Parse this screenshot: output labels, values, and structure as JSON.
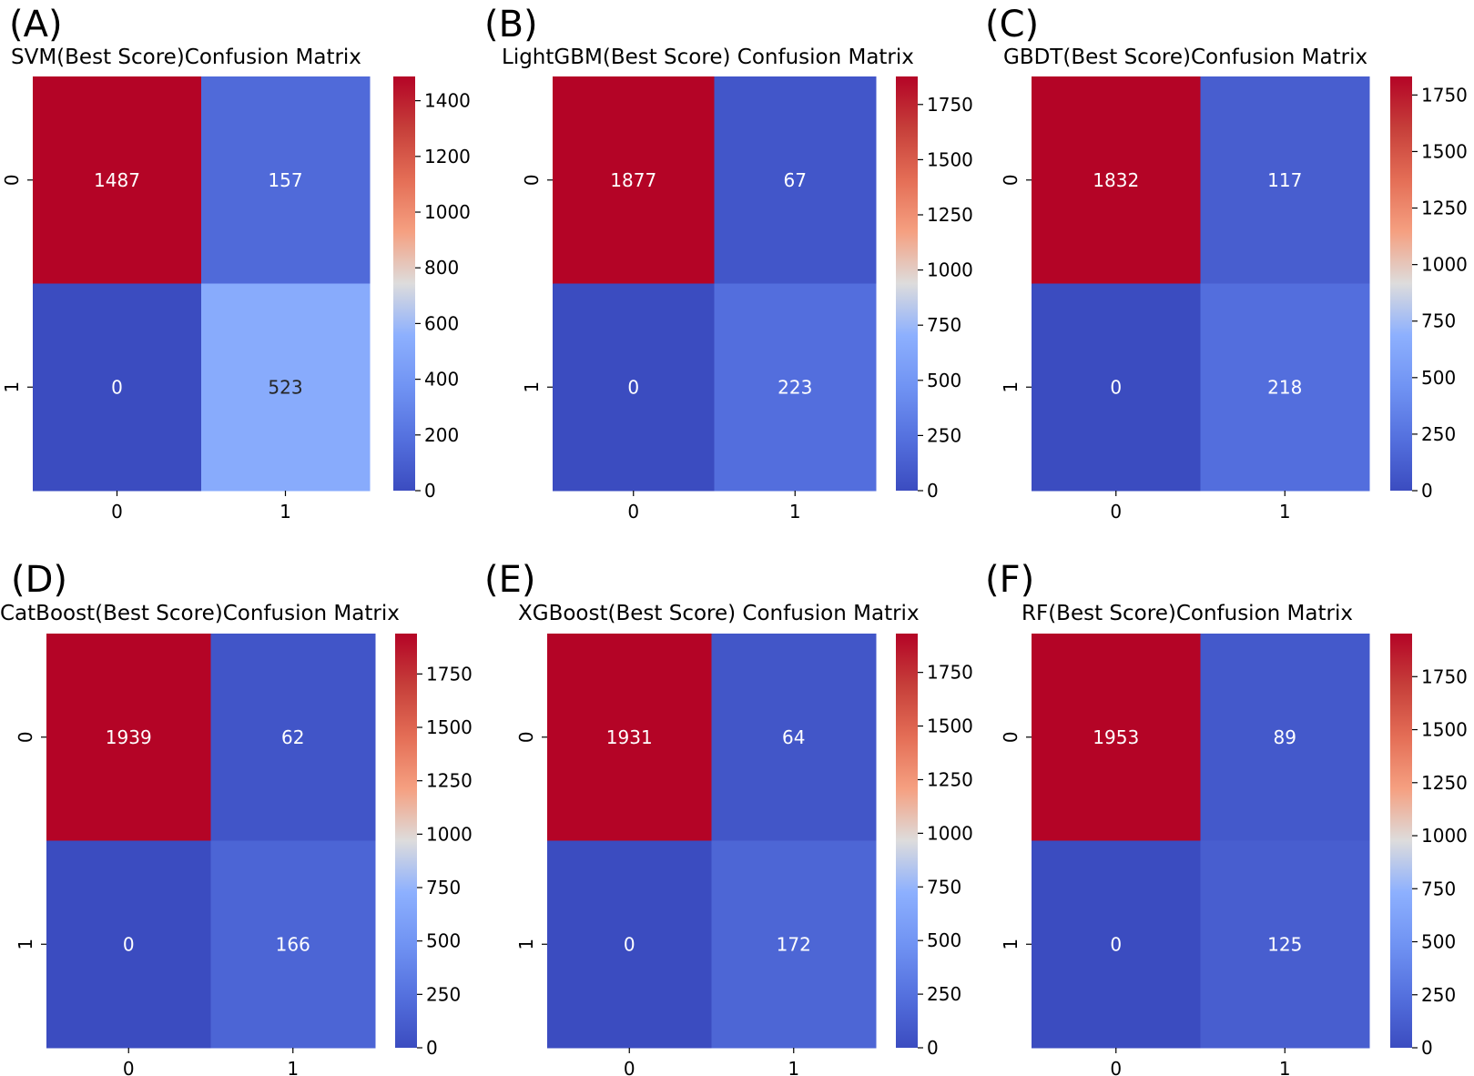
{
  "figure": {
    "layout": "2x3 grid of confusion matrix heatmaps",
    "colormap": "coolwarm"
  },
  "chart_data": [
    {
      "type": "heatmap",
      "panel": "(A)",
      "title": "SVM(Best Score)Confusion Matrix",
      "x_categories": [
        "0",
        "1"
      ],
      "y_categories": [
        "0",
        "1"
      ],
      "values": [
        [
          1487,
          157
        ],
        [
          0,
          523
        ]
      ],
      "colorbar": {
        "min": 0,
        "max": 1487,
        "ticks": [
          0,
          200,
          400,
          600,
          800,
          1000,
          1200,
          1400
        ]
      }
    },
    {
      "type": "heatmap",
      "panel": "(B)",
      "title": "LightGBM(Best Score) Confusion Matrix",
      "x_categories": [
        "0",
        "1"
      ],
      "y_categories": [
        "0",
        "1"
      ],
      "values": [
        [
          1877,
          67
        ],
        [
          0,
          223
        ]
      ],
      "colorbar": {
        "min": 0,
        "max": 1877,
        "ticks": [
          0,
          250,
          500,
          750,
          1000,
          1250,
          1500,
          1750
        ]
      }
    },
    {
      "type": "heatmap",
      "panel": "(C)",
      "title": "GBDT(Best Score)Confusion Matrix",
      "x_categories": [
        "0",
        "1"
      ],
      "y_categories": [
        "0",
        "1"
      ],
      "values": [
        [
          1832,
          117
        ],
        [
          0,
          218
        ]
      ],
      "colorbar": {
        "min": 0,
        "max": 1832,
        "ticks": [
          0,
          250,
          500,
          750,
          1000,
          1250,
          1500,
          1750
        ]
      }
    },
    {
      "type": "heatmap",
      "panel": "(D)",
      "title": "CatBoost(Best Score)Confusion Matrix",
      "x_categories": [
        "0",
        "1"
      ],
      "y_categories": [
        "0",
        "1"
      ],
      "values": [
        [
          1939,
          62
        ],
        [
          0,
          166
        ]
      ],
      "colorbar": {
        "min": 0,
        "max": 1939,
        "ticks": [
          0,
          250,
          500,
          750,
          1000,
          1250,
          1500,
          1750
        ]
      }
    },
    {
      "type": "heatmap",
      "panel": "(E)",
      "title": "XGBoost(Best Score) Confusion Matrix",
      "x_categories": [
        "0",
        "1"
      ],
      "y_categories": [
        "0",
        "1"
      ],
      "values": [
        [
          1931,
          64
        ],
        [
          0,
          172
        ]
      ],
      "colorbar": {
        "min": 0,
        "max": 1931,
        "ticks": [
          0,
          250,
          500,
          750,
          1000,
          1250,
          1500,
          1750
        ]
      }
    },
    {
      "type": "heatmap",
      "panel": "(F)",
      "title": "RF(Best Score)Confusion Matrix",
      "x_categories": [
        "0",
        "1"
      ],
      "y_categories": [
        "0",
        "1"
      ],
      "values": [
        [
          1953,
          89
        ],
        [
          0,
          125
        ]
      ],
      "colorbar": {
        "min": 0,
        "max": 1953,
        "ticks": [
          0,
          250,
          500,
          750,
          1000,
          1250,
          1500,
          1750
        ]
      }
    }
  ]
}
